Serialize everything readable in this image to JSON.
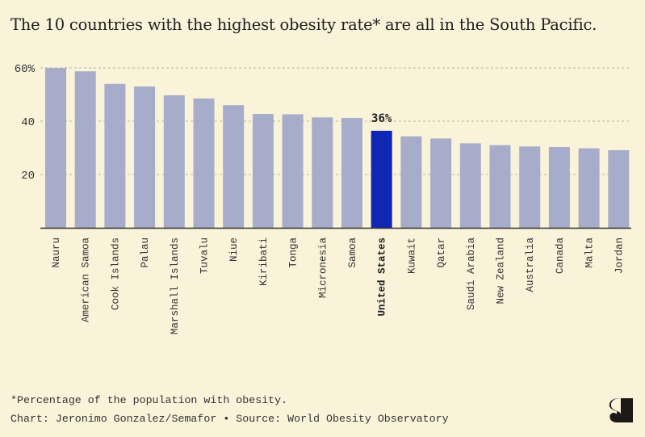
{
  "title": "The 10 countries with the highest obesity rate* are all in the South Pacific.",
  "footnote": "*Percentage of the population with obesity.",
  "credit": "Chart: Jeronimo Gonzalez/Semafor • Source: World Obesity Observatory",
  "logo_text": "S",
  "colors": {
    "background": "#f9f3d9",
    "bar": "#a7acca",
    "highlight": "#0f27b4",
    "grid": "#b9b59f",
    "axis": "#333333"
  },
  "chart_data": {
    "type": "bar",
    "title": "The 10 countries with the highest obesity rate* are all in the South Pacific.",
    "xlabel": "",
    "ylabel": "",
    "ylim": [
      0,
      60
    ],
    "yticks": [
      {
        "value": 60,
        "label": "60%"
      },
      {
        "value": 40,
        "label": "40"
      },
      {
        "value": 20,
        "label": "20"
      }
    ],
    "grid": true,
    "categories": [
      "Nauru",
      "American Samoa",
      "Cook Islands",
      "Palau",
      "Marshall Islands",
      "Tuvalu",
      "Niue",
      "Kiribati",
      "Tonga",
      "Micronesia",
      "Samoa",
      "United States",
      "Kuwait",
      "Qatar",
      "Saudi Arabia",
      "New Zealand",
      "Australia",
      "Canada",
      "Malta",
      "Jordan"
    ],
    "values": [
      60.0,
      58.7,
      54.0,
      53.0,
      49.7,
      48.5,
      46.0,
      42.7,
      42.6,
      41.4,
      41.2,
      36.4,
      34.3,
      33.5,
      31.7,
      31.0,
      30.5,
      30.3,
      29.8,
      29.1
    ],
    "highlight": "United States",
    "annotations": [
      {
        "category": "United States",
        "label": "36%"
      }
    ]
  }
}
